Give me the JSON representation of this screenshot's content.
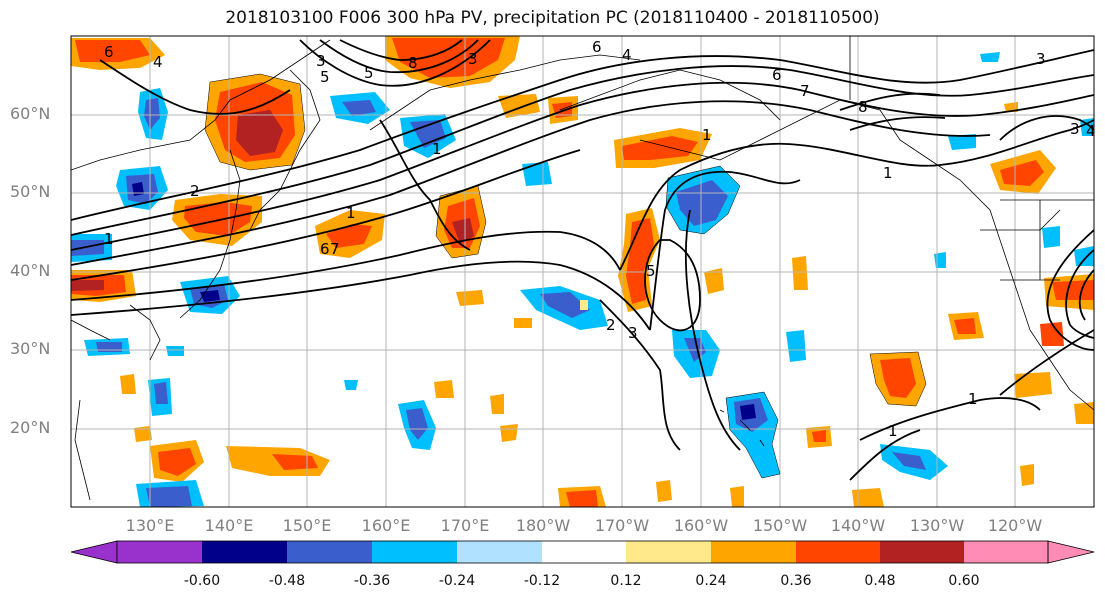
{
  "title": "2018103100 F006 300 hPa PV, precipitation PC (2018110400 - 2018110500)",
  "lat_labels": [
    "60°N",
    "50°N",
    "40°N",
    "30°N",
    "20°N"
  ],
  "lon_labels": [
    "130°E",
    "140°E",
    "150°E",
    "160°E",
    "170°E",
    "180°W",
    "170°W",
    "160°W",
    "150°W",
    "140°W",
    "130°W",
    "120°W"
  ],
  "colorbar": {
    "tick_labels": [
      "-0.60",
      "-0.48",
      "-0.36",
      "-0.24",
      "-0.12",
      "0.12",
      "0.24",
      "0.36",
      "0.48",
      "0.60"
    ],
    "colors": [
      "#9932cc",
      "#00008b",
      "#3a5fcd",
      "#00bfff",
      "#b0e2ff",
      "#ffffff",
      "#ffe98a",
      "#ffa500",
      "#ff4500",
      "#b22222",
      "#ff8cb4"
    ]
  },
  "contour_labels": [
    "6",
    "4",
    "3",
    "5",
    "8",
    "3",
    "5",
    "6",
    "4",
    "1",
    "2",
    "7",
    "6",
    "7",
    "8",
    "3",
    "4",
    "3",
    "1",
    "1",
    "1",
    "6",
    "1",
    "5",
    "2",
    "3",
    "1",
    "1"
  ]
}
